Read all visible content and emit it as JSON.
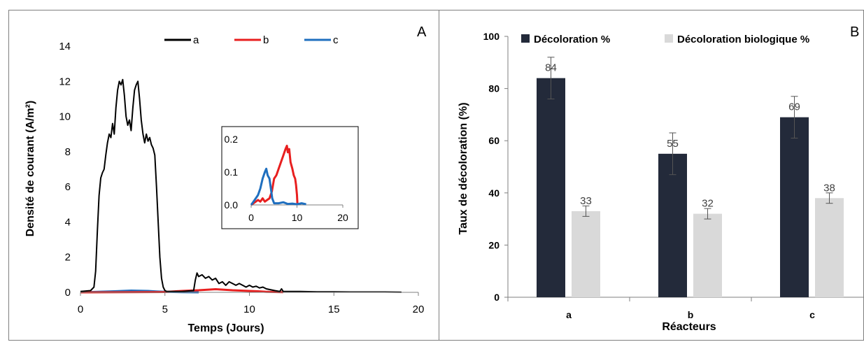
{
  "chart_data": [
    {
      "panel_label": "A",
      "type": "line",
      "xlabel": "Temps (Jours)",
      "ylabel": "Densité de courant (A/m²)",
      "xlim": [
        0,
        20
      ],
      "ylim": [
        0,
        14
      ],
      "xticks": [
        0,
        5,
        10,
        15,
        20
      ],
      "yticks": [
        0,
        2,
        4,
        6,
        8,
        10,
        12,
        14
      ],
      "legend_position": "top",
      "series": [
        {
          "name": "a",
          "color": "#000000",
          "x": [
            0,
            0.6,
            0.8,
            0.9,
            1.0,
            1.1,
            1.2,
            1.3,
            1.4,
            1.5,
            1.6,
            1.7,
            1.8,
            1.9,
            2.0,
            2.1,
            2.2,
            2.3,
            2.4,
            2.5,
            2.6,
            2.7,
            2.8,
            2.9,
            3.0,
            3.1,
            3.2,
            3.3,
            3.4,
            3.5,
            3.6,
            3.7,
            3.8,
            3.9,
            4.0,
            4.1,
            4.2,
            4.3,
            4.4,
            4.5,
            4.6,
            4.7,
            4.8,
            4.9,
            5.0,
            5.1,
            6.0,
            6.7,
            6.8,
            6.9,
            7.0,
            7.2,
            7.4,
            7.6,
            7.8,
            8.0,
            8.2,
            8.4,
            8.6,
            8.8,
            9.0,
            9.2,
            9.4,
            9.6,
            9.8,
            10.0,
            10.2,
            10.4,
            10.6,
            10.8,
            11.0,
            11.5,
            11.8,
            11.9,
            12.0,
            12.5,
            13.0,
            14.0,
            15.0,
            16.0,
            17.0,
            18.0,
            19.0
          ],
          "y": [
            0.05,
            0.1,
            0.3,
            1.2,
            3.5,
            5.5,
            6.5,
            6.8,
            7.0,
            7.8,
            8.5,
            9.0,
            8.8,
            9.6,
            9.0,
            10.5,
            11.5,
            12.0,
            11.8,
            12.1,
            11.2,
            10.0,
            9.5,
            9.8,
            9.2,
            10.5,
            11.5,
            11.8,
            12.0,
            11.0,
            9.8,
            9.0,
            8.5,
            9.0,
            8.6,
            8.8,
            8.4,
            8.2,
            7.8,
            6.0,
            4.0,
            2.0,
            0.8,
            0.3,
            0.1,
            0.05,
            0.05,
            0.1,
            0.7,
            1.1,
            0.9,
            1.0,
            0.8,
            0.9,
            0.7,
            0.8,
            0.5,
            0.6,
            0.4,
            0.6,
            0.5,
            0.4,
            0.5,
            0.4,
            0.3,
            0.4,
            0.3,
            0.35,
            0.25,
            0.3,
            0.2,
            0.1,
            0.05,
            0.2,
            0.05,
            0.05,
            0.05,
            0.03,
            0.03,
            0.02,
            0.02,
            0.02,
            0.01
          ]
        },
        {
          "name": "b",
          "color": "#e81f1f",
          "x": [
            0,
            5.0,
            5.5,
            6.0,
            6.5,
            7.0,
            7.5,
            8.0,
            8.5,
            9.0,
            9.5,
            10.0,
            10.5,
            11.0,
            12.0
          ],
          "y": [
            0,
            0.02,
            0.05,
            0.08,
            0.1,
            0.12,
            0.15,
            0.18,
            0.15,
            0.12,
            0.1,
            0.08,
            0.06,
            0.03,
            0.01
          ]
        },
        {
          "name": "c",
          "color": "#1f6fbf",
          "x": [
            0,
            1.0,
            2.0,
            2.5,
            3.0,
            3.5,
            4.0,
            4.5,
            5.0,
            6.0,
            7.0
          ],
          "y": [
            0,
            0.03,
            0.06,
            0.08,
            0.1,
            0.09,
            0.08,
            0.05,
            0.03,
            0.01,
            0
          ]
        }
      ]
    },
    {
      "panel_label": "inset",
      "type": "line",
      "xlim": [
        0,
        20
      ],
      "ylim": [
        0,
        0.2
      ],
      "xticks": [
        0,
        10,
        20
      ],
      "yticks": [
        "0.0",
        "0.1",
        "0.2"
      ],
      "series": [
        {
          "name": "b",
          "color": "#e81f1f",
          "x": [
            0,
            1.0,
            1.5,
            2.0,
            2.5,
            3.0,
            3.5,
            4.0,
            4.5,
            5.0,
            5.5,
            6.0,
            6.5,
            7.0,
            7.5,
            7.8,
            8.0,
            8.3,
            8.6,
            9.0,
            9.3,
            9.6,
            9.8,
            10.0,
            10.1
          ],
          "y": [
            0.0,
            0.01,
            0.015,
            0.01,
            0.02,
            0.01,
            0.015,
            0.02,
            0.04,
            0.08,
            0.09,
            0.11,
            0.13,
            0.15,
            0.17,
            0.18,
            0.16,
            0.17,
            0.13,
            0.11,
            0.09,
            0.08,
            0.06,
            0.03,
            0.0
          ]
        },
        {
          "name": "c",
          "color": "#1f6fbf",
          "x": [
            0,
            0.5,
            1.0,
            1.5,
            2.0,
            2.5,
            3.0,
            3.3,
            3.6,
            4.0,
            4.3,
            4.6,
            5.0,
            6.0,
            7.0,
            8.0,
            9.0,
            10.0,
            11.0,
            12.0
          ],
          "y": [
            0.0,
            0.01,
            0.02,
            0.03,
            0.05,
            0.08,
            0.1,
            0.11,
            0.09,
            0.08,
            0.05,
            0.02,
            0.005,
            0.005,
            0.008,
            0.003,
            0.004,
            0.002,
            0.005,
            0.002
          ]
        }
      ]
    },
    {
      "panel_label": "B",
      "type": "bar",
      "xlabel": "Réacteurs",
      "ylabel": "Taux de décoloration (%)",
      "ylim": [
        0,
        100
      ],
      "yticks": [
        0,
        20,
        40,
        60,
        80,
        100
      ],
      "categories": [
        "a",
        "b",
        "c"
      ],
      "legend_position": "top",
      "series": [
        {
          "name": "Décoloration  %",
          "color": "#232a3a",
          "values": [
            84,
            55,
            69
          ],
          "labels": [
            "84",
            "55",
            "69"
          ],
          "error": [
            8,
            8,
            8
          ]
        },
        {
          "name": "Décoloration biologique %",
          "color": "#d9d9d9",
          "values": [
            33,
            32,
            38
          ],
          "labels": [
            "33",
            "32",
            "38"
          ],
          "error": [
            2,
            2,
            2
          ]
        }
      ]
    }
  ]
}
